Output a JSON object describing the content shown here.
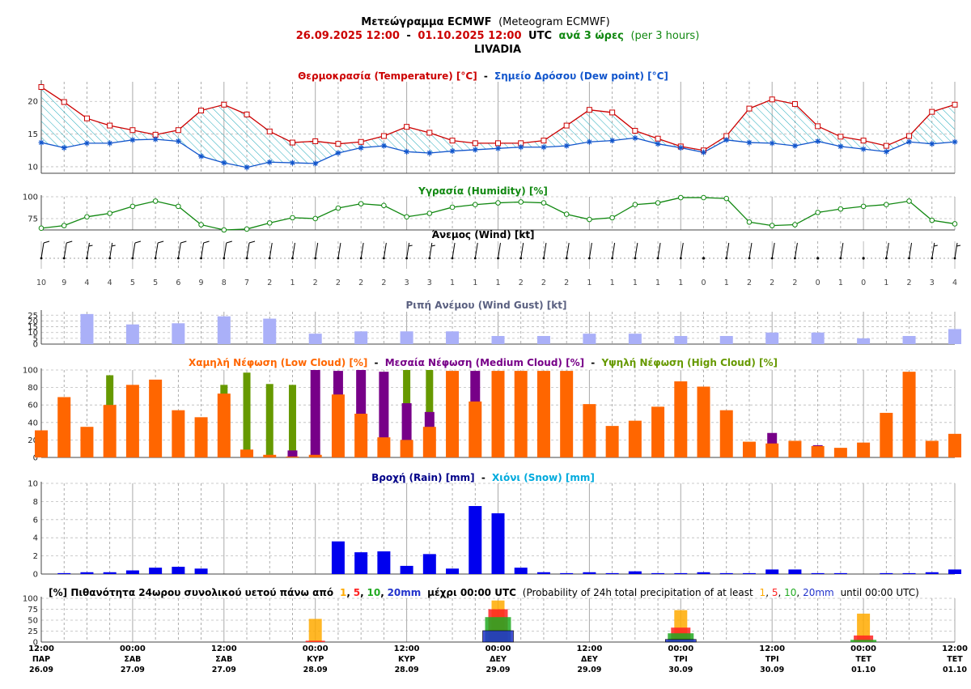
{
  "header": {
    "title_gr": "Μετεώγραμμα ECMWF",
    "title_en": "(Meteogram ECMWF)",
    "range_start": "26.09.2025 12:00",
    "range_sep": "-",
    "range_end": "01.10.2025 12:00",
    "utc": "UTC",
    "every_gr": "ανά 3 ώρες",
    "every_en": "(per 3 hours)",
    "location": "LIVADIA"
  },
  "panel_titles": {
    "temp": "Θερμοκρασία (Temperature) [°C]",
    "temp_sep": "-",
    "dew": "Σημείο Δρόσου (Dew point) [°C]",
    "humidity": "Υγρασία (Humidity) [%]",
    "wind": "Άνεμος (Wind) [kt]",
    "gust": "Ριπή Ανέμου (Wind Gust) [kt]",
    "low_cloud": "Χαμηλή Νέφωση (Low Cloud) [%]",
    "cloud_sep1": "-",
    "med_cloud": "Μεσαία Νέφωση (Medium Cloud) [%]",
    "cloud_sep2": "-",
    "high_cloud": "Υψηλή Νέφωση (High Cloud) [%]",
    "rain": "Βροχή (Rain) [mm]",
    "rain_sep": "-",
    "snow": "Χιόνι (Snow) [mm]",
    "prob_a": "[%] Πιθανότητα 24ωρου συνολικού υετού πάνω από",
    "prob_1": "1",
    "prob_5": "5",
    "prob_10": "10",
    "prob_20": "20mm",
    "prob_b": "μέχρι 00:00 UTC",
    "prob_c": "(Probability of 24h total precipitation of at least",
    "prob_1e": "1",
    "prob_5e": "5",
    "prob_10e": "10",
    "prob_20e": "20mm",
    "prob_d": "until 00:00 UTC)",
    "comma": ","
  },
  "colors": {
    "temp": "#cc0000",
    "dew": "#1155cc",
    "humidity": "#118811",
    "gust": "#aab0f8",
    "low_cloud": "#ff6600",
    "med_cloud": "#770088",
    "high_cloud": "#669900",
    "rain": "#0000ee",
    "snow": "#00aadd",
    "p1": "#ffaa00",
    "p5": "#ff2222",
    "p10": "#22aa22",
    "p20": "#2233cc"
  },
  "chart_data": {
    "type": "meteogram",
    "step_hours": 3,
    "x_start": "26.09.2025 12:00",
    "x_end": "01.10.2025 12:00",
    "x_ticks": [
      {
        "time": "12:00",
        "day": "ΠΑΡ",
        "date": "26.09"
      },
      {
        "time": "00:00",
        "day": "ΣΑΒ",
        "date": "27.09"
      },
      {
        "time": "12:00",
        "day": "ΣΑΒ",
        "date": "27.09"
      },
      {
        "time": "00:00",
        "day": "ΚΥΡ",
        "date": "28.09"
      },
      {
        "time": "12:00",
        "day": "ΚΥΡ",
        "date": "28.09"
      },
      {
        "time": "00:00",
        "day": "ΔΕΥ",
        "date": "29.09"
      },
      {
        "time": "12:00",
        "day": "ΔΕΥ",
        "date": "29.09"
      },
      {
        "time": "00:00",
        "day": "ΤΡΙ",
        "date": "30.09"
      },
      {
        "time": "12:00",
        "day": "ΤΡΙ",
        "date": "30.09"
      },
      {
        "time": "00:00",
        "day": "ΤΕΤ",
        "date": "01.10"
      },
      {
        "time": "12:00",
        "day": "ΤΕΤ",
        "date": "01.10"
      }
    ],
    "temperature": {
      "ylim": [
        9,
        23
      ],
      "yticks": [
        10,
        15,
        20
      ],
      "values": [
        22.2,
        19.9,
        17.4,
        16.3,
        15.6,
        14.9,
        15.6,
        18.6,
        19.5,
        18.0,
        15.4,
        13.7,
        13.9,
        13.5,
        13.8,
        14.7,
        16.1,
        15.2,
        14.0,
        13.6,
        13.6,
        13.6,
        14.0,
        16.3,
        18.7,
        18.3,
        15.5,
        14.3,
        13.1,
        12.5,
        14.7,
        18.9,
        20.3,
        19.6,
        16.2,
        14.6,
        14.0,
        13.2,
        14.7,
        18.4,
        19.5
      ]
    },
    "dew_point": {
      "values": [
        13.7,
        12.9,
        13.6,
        13.6,
        14.1,
        14.2,
        13.9,
        11.6,
        10.6,
        9.9,
        10.7,
        10.6,
        10.5,
        12.1,
        12.9,
        13.2,
        12.3,
        12.1,
        12.4,
        12.6,
        12.8,
        13.0,
        13.0,
        13.2,
        13.8,
        14.0,
        14.4,
        13.5,
        12.9,
        12.2,
        14.1,
        13.7,
        13.6,
        13.2,
        13.9,
        13.1,
        12.7,
        12.3,
        13.8,
        13.5,
        13.8
      ]
    },
    "humidity": {
      "ylim": [
        62,
        100
      ],
      "yticks": [
        75,
        100
      ],
      "values": [
        64,
        67,
        77,
        81,
        89,
        95,
        89,
        68,
        62,
        63,
        70,
        76,
        75,
        87,
        92,
        90,
        77,
        81,
        88,
        91,
        93,
        94,
        93,
        80,
        74,
        76,
        91,
        93,
        99,
        99,
        98,
        71,
        67,
        68,
        82,
        86,
        89,
        91,
        95,
        73,
        69
      ]
    },
    "wind": {
      "speeds": [
        10,
        9,
        4,
        4,
        5,
        5,
        6,
        9,
        8,
        7,
        2,
        1,
        2,
        2,
        2,
        2,
        3,
        3,
        1,
        1,
        1,
        2,
        2,
        2,
        1,
        1,
        1,
        1,
        1,
        0,
        1,
        2,
        2,
        2,
        0,
        1,
        0,
        1,
        2,
        3,
        4
      ]
    },
    "gust": {
      "ylim": [
        0,
        28
      ],
      "yticks": [
        0,
        5,
        10,
        15,
        20,
        25
      ],
      "values": [
        null,
        null,
        26,
        null,
        17,
        null,
        18,
        null,
        24,
        null,
        22,
        null,
        9,
        null,
        11,
        null,
        11,
        null,
        11,
        null,
        7,
        null,
        7,
        null,
        9,
        null,
        9,
        null,
        7,
        null,
        7,
        null,
        10,
        null,
        10,
        null,
        5,
        null,
        7,
        null,
        13
      ]
    },
    "low_cloud": {
      "ylim": [
        0,
        100
      ],
      "yticks": [
        0,
        20,
        40,
        60,
        80,
        100
      ],
      "values": [
        31,
        69,
        35,
        60,
        83,
        89,
        54,
        46,
        73,
        9,
        3,
        1,
        3,
        72,
        50,
        23,
        20,
        35,
        99,
        64,
        99,
        99,
        99,
        99,
        61,
        36,
        42,
        58,
        87,
        81,
        54,
        18,
        16,
        19,
        13,
        11,
        17,
        51,
        98,
        19,
        27
      ]
    },
    "medium_cloud": {
      "values": [
        0,
        0,
        0,
        0,
        0,
        0,
        0,
        0,
        0,
        0,
        0,
        8,
        100,
        99,
        100,
        98,
        62,
        52,
        0,
        99,
        0,
        0,
        0,
        0,
        0,
        0,
        0,
        0,
        0,
        0,
        0,
        0,
        28,
        0,
        14,
        0,
        0,
        0,
        0,
        0,
        0
      ]
    },
    "high_cloud": {
      "values": [
        0,
        0,
        0,
        94,
        0,
        0,
        0,
        0,
        83,
        97,
        84,
        83,
        0,
        0,
        0,
        0,
        100,
        100,
        0,
        0,
        0,
        0,
        0,
        0,
        0,
        0,
        0,
        0,
        0,
        0,
        0,
        0,
        0,
        0,
        0,
        0,
        0,
        0,
        0,
        0,
        0
      ]
    },
    "rain": {
      "ylim": [
        0,
        10
      ],
      "yticks": [
        0,
        2,
        4,
        6,
        8,
        10
      ],
      "values": [
        0,
        0.1,
        0.2,
        0.2,
        0.4,
        0.7,
        0.8,
        0.6,
        0,
        0,
        0,
        0,
        0,
        3.6,
        2.4,
        2.5,
        0.9,
        2.2,
        0.6,
        7.5,
        6.7,
        0.7,
        0.2,
        0.1,
        0.2,
        0.1,
        0.3,
        0.1,
        0.1,
        0.2,
        0.1,
        0.1,
        0.5,
        0.5,
        0.1,
        0.1,
        0,
        0.1,
        0.1,
        0.2,
        0.5
      ]
    },
    "probability": {
      "ylim": [
        0,
        100
      ],
      "yticks": [
        0,
        25,
        50,
        75,
        100
      ],
      "days": [
        {
          "date": "28.09",
          "p1": 53,
          "p5": 3,
          "p10": 0,
          "p20": 0
        },
        {
          "date": "29.09",
          "p1": 95,
          "p5": 75,
          "p10": 57,
          "p20": 26
        },
        {
          "date": "30.09",
          "p1": 73,
          "p5": 33,
          "p10": 20,
          "p20": 6
        },
        {
          "date": "01.10",
          "p1": 65,
          "p5": 15,
          "p10": 5,
          "p20": 0
        }
      ]
    }
  }
}
